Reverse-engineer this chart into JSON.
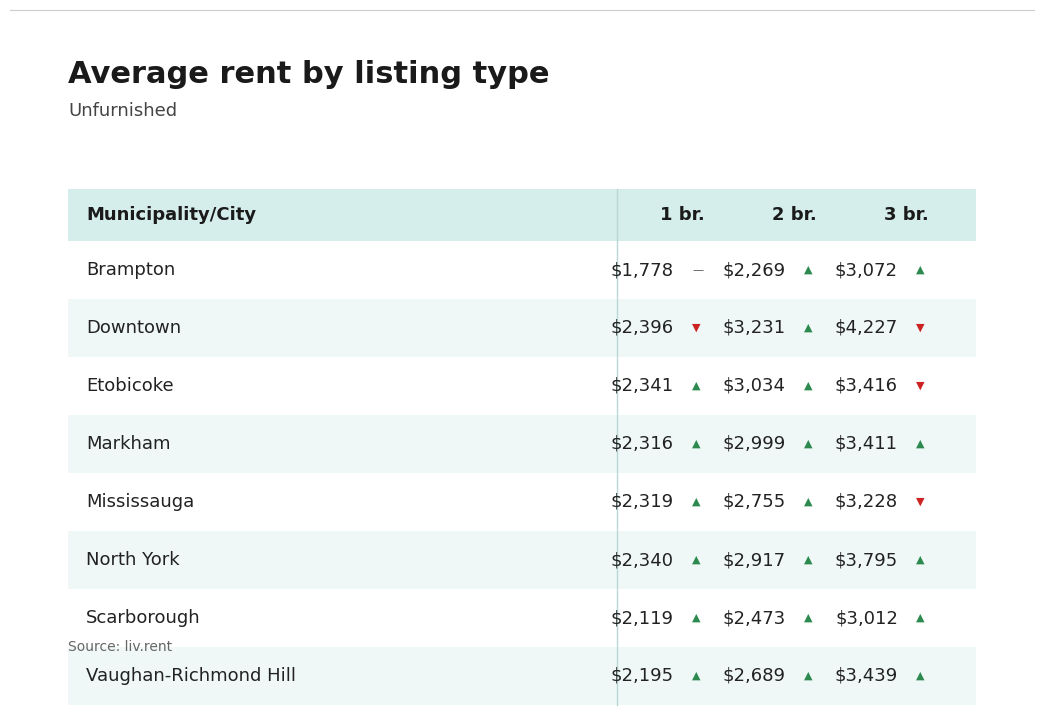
{
  "title": "Average rent by listing type",
  "subtitle": "Unfurnished",
  "source": "Source: liv.rent",
  "header": [
    "Municipality/City",
    "1 br.",
    "2 br.",
    "3 br."
  ],
  "rows": [
    {
      "city": "Brampton",
      "br1": "$1,778",
      "br1_trend": "neutral",
      "br2": "$2,269",
      "br2_trend": "up",
      "br3": "$3,072",
      "br3_trend": "up"
    },
    {
      "city": "Downtown",
      "br1": "$2,396",
      "br1_trend": "down",
      "br2": "$3,231",
      "br2_trend": "up",
      "br3": "$4,227",
      "br3_trend": "down"
    },
    {
      "city": "Etobicoke",
      "br1": "$2,341",
      "br1_trend": "up",
      "br2": "$3,034",
      "br2_trend": "up",
      "br3": "$3,416",
      "br3_trend": "down"
    },
    {
      "city": "Markham",
      "br1": "$2,316",
      "br1_trend": "up",
      "br2": "$2,999",
      "br2_trend": "up",
      "br3": "$3,411",
      "br3_trend": "up"
    },
    {
      "city": "Mississauga",
      "br1": "$2,319",
      "br1_trend": "up",
      "br2": "$2,755",
      "br2_trend": "up",
      "br3": "$3,228",
      "br3_trend": "down"
    },
    {
      "city": "North York",
      "br1": "$2,340",
      "br1_trend": "up",
      "br2": "$2,917",
      "br2_trend": "up",
      "br3": "$3,795",
      "br3_trend": "up"
    },
    {
      "city": "Scarborough",
      "br1": "$2,119",
      "br1_trend": "up",
      "br2": "$2,473",
      "br2_trend": "up",
      "br3": "$3,012",
      "br3_trend": "up"
    },
    {
      "city": "Vaughan-Richmond Hill",
      "br1": "$2,195",
      "br1_trend": "up",
      "br2": "$2,689",
      "br2_trend": "up",
      "br3": "$3,439",
      "br3_trend": "up"
    }
  ],
  "header_bg": "#d6eeeb",
  "row_bg_alt": "#eff8f7",
  "row_bg_plain": "#ffffff",
  "color_up": "#2d8a4e",
  "color_down": "#cc2222",
  "color_neutral": "#555555",
  "bg_color": "#ffffff",
  "title_fontsize": 22,
  "subtitle_fontsize": 13,
  "header_fontsize": 13,
  "cell_fontsize": 13,
  "source_fontsize": 10,
  "top_border_color": "#cccccc",
  "separator_color": "#b8d8d4"
}
